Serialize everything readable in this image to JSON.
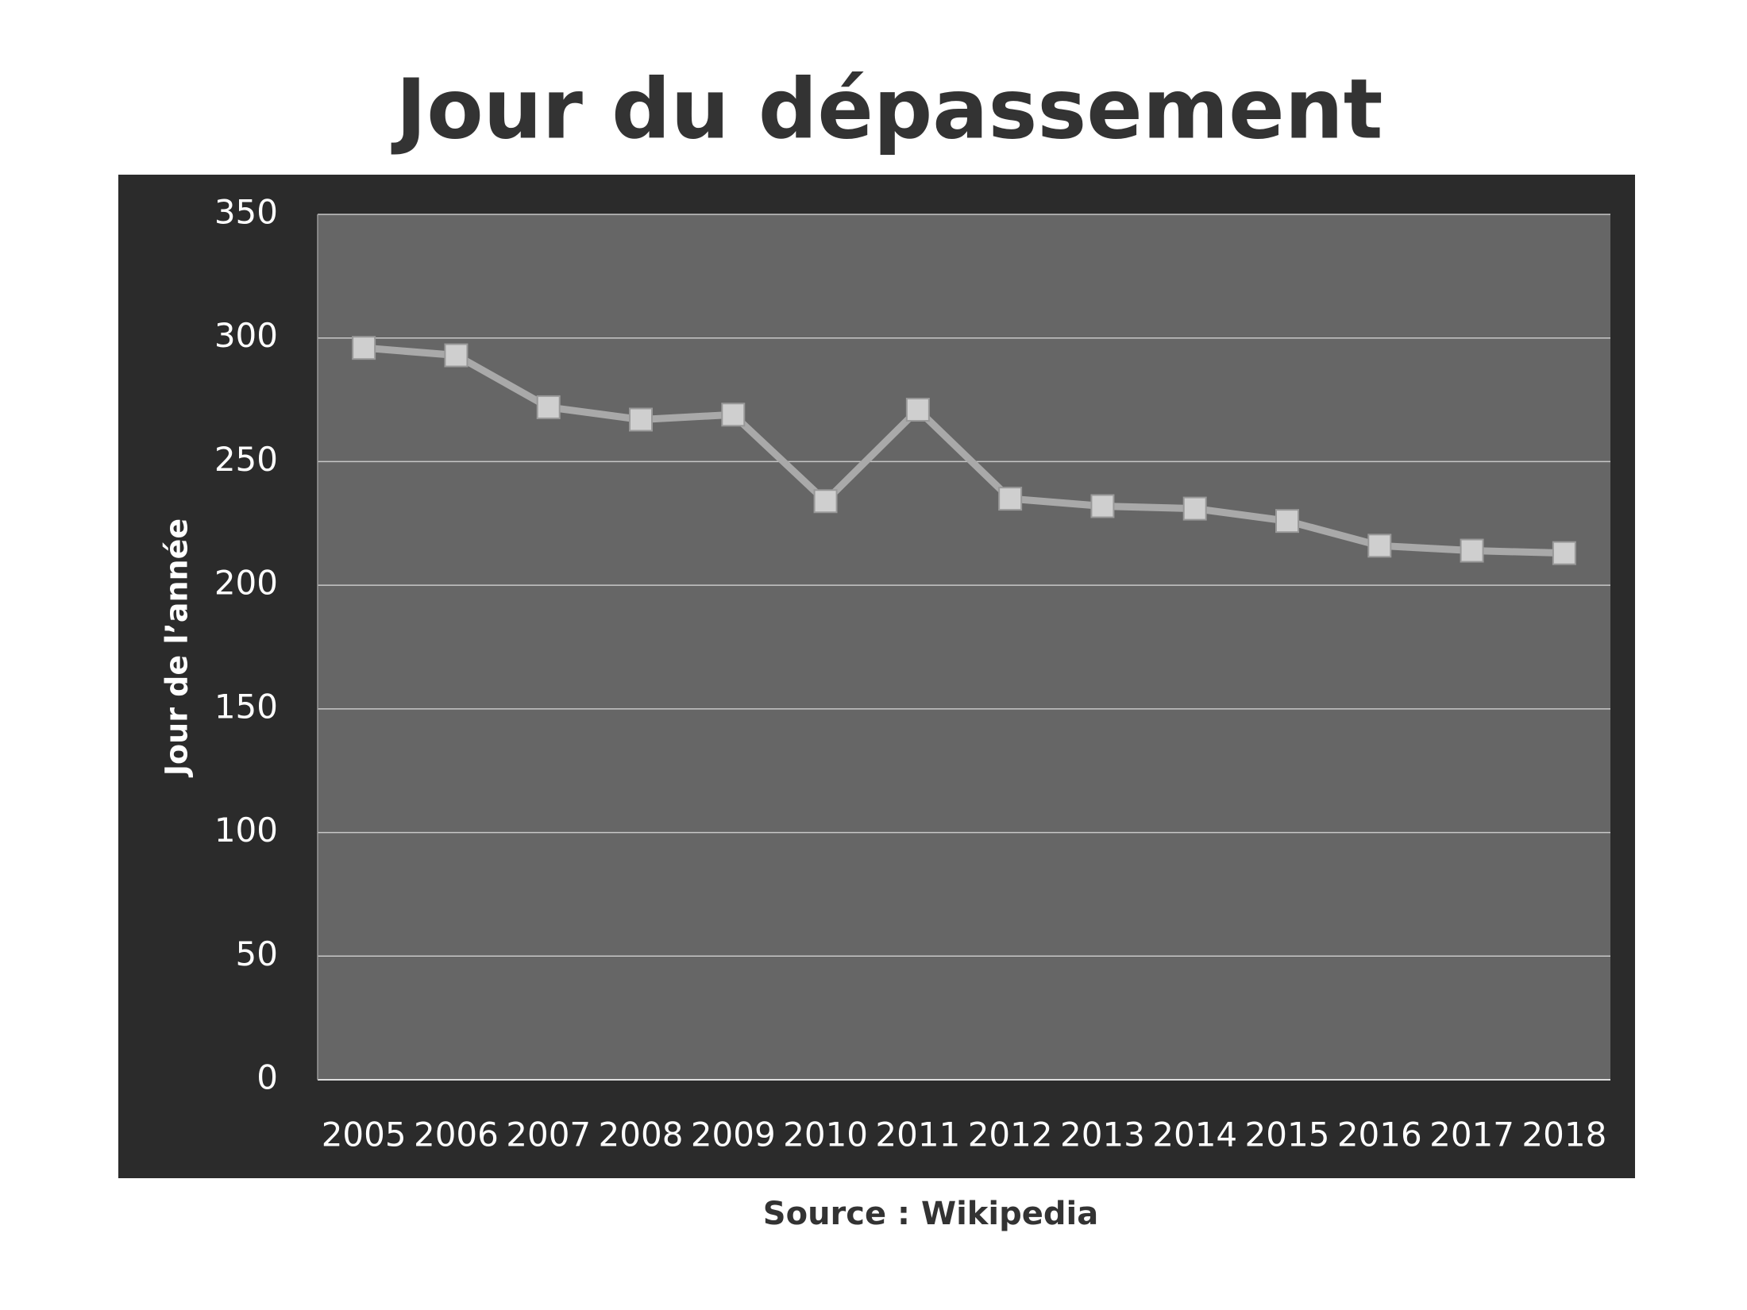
{
  "chart_data": {
    "type": "line",
    "title": "Jour du dépassement",
    "y_label": "Jour de l’année",
    "source": "Source : Wikipedia",
    "categories": [
      "2005",
      "2006",
      "2007",
      "2008",
      "2009",
      "2010",
      "2011",
      "2012",
      "2013",
      "2014",
      "2015",
      "2016",
      "2017",
      "2018"
    ],
    "series": [
      {
        "name": "Jour du dépassement",
        "color": "#a9a9a9",
        "values": [
          296,
          293,
          272,
          267,
          269,
          234,
          271,
          235,
          232,
          231,
          226,
          216,
          214,
          213
        ]
      }
    ],
    "ylim": [
      0,
      350
    ],
    "yticks": [
      0,
      50,
      100,
      150,
      200,
      250,
      300,
      350
    ],
    "grid": true,
    "legend": false
  }
}
